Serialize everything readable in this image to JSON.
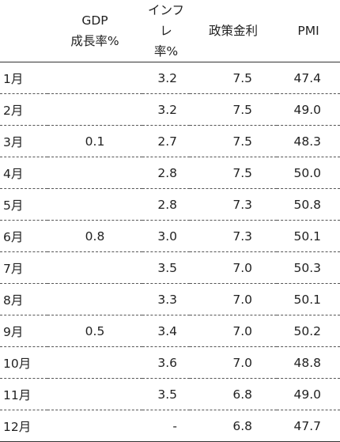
{
  "table": {
    "headers": {
      "month": "",
      "gdp": [
        "GDP",
        "成長率%"
      ],
      "inflation": [
        "インフレ",
        "率%"
      ],
      "policy_rate": "政策金利",
      "pmi": "PMI"
    },
    "rows": [
      {
        "month": "1月",
        "gdp": "",
        "inflation": "3.2",
        "policy_rate": "7.5",
        "pmi": "47.4"
      },
      {
        "month": "2月",
        "gdp": "",
        "inflation": "3.2",
        "policy_rate": "7.5",
        "pmi": "49.0"
      },
      {
        "month": "3月",
        "gdp": "0.1",
        "inflation": "2.7",
        "policy_rate": "7.5",
        "pmi": "48.3"
      },
      {
        "month": "4月",
        "gdp": "",
        "inflation": "2.8",
        "policy_rate": "7.5",
        "pmi": "50.0"
      },
      {
        "month": "5月",
        "gdp": "",
        "inflation": "2.8",
        "policy_rate": "7.3",
        "pmi": "50.8"
      },
      {
        "month": "6月",
        "gdp": "0.8",
        "inflation": "3.0",
        "policy_rate": "7.3",
        "pmi": "50.1"
      },
      {
        "month": "7月",
        "gdp": "",
        "inflation": "3.5",
        "policy_rate": "7.0",
        "pmi": "50.3"
      },
      {
        "month": "8月",
        "gdp": "",
        "inflation": "3.3",
        "policy_rate": "7.0",
        "pmi": "50.1"
      },
      {
        "month": "9月",
        "gdp": "0.5",
        "inflation": "3.4",
        "policy_rate": "7.0",
        "pmi": "50.2"
      },
      {
        "month": "10月",
        "gdp": "",
        "inflation": "3.6",
        "policy_rate": "7.0",
        "pmi": "48.8"
      },
      {
        "month": "11月",
        "gdp": "",
        "inflation": "3.5",
        "policy_rate": "6.8",
        "pmi": "49.0"
      },
      {
        "month": "12月",
        "gdp": "",
        "inflation": "-",
        "policy_rate": "6.8",
        "pmi": "47.7"
      }
    ]
  }
}
